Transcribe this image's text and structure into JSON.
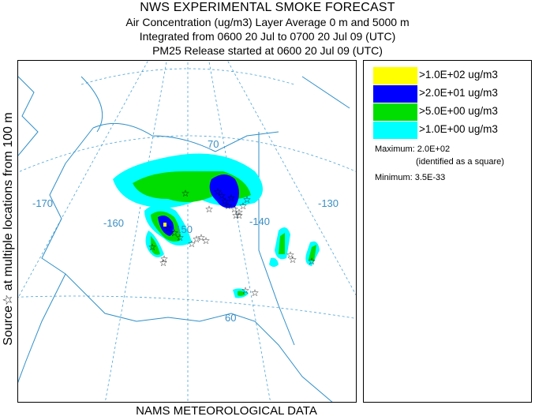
{
  "header": {
    "title": "NWS EXPERIMENTAL SMOKE FORECAST",
    "line2": "Air Concentration (ug/m3) Layer Average    0 m and  5000 m",
    "line3": "Integrated from 0600 20 Jul to 0700 20 Jul 09 (UTC)",
    "line4": "PM25 Release started at 0600 20 Jul 09 (UTC)"
  },
  "side_label": "Source☆  at multiple locations  from  100 m",
  "footer": "NAMS METEOROLOGICAL DATA",
  "legend": {
    "items": [
      {
        "label": ">1.0E+02 ug/m3",
        "color": "#ffff00"
      },
      {
        "label": ">2.0E+01 ug/m3",
        "color": "#0000ff"
      },
      {
        "label": ">5.0E+00 ug/m3",
        "color": "#00dd00"
      },
      {
        "label": ">1.0E+00 ug/m3",
        "color": "#00ffff"
      }
    ],
    "maximum_label": "Maximum:",
    "maximum_value": "2.0E+02",
    "maximum_note": "(identified as a square)",
    "minimum_label": "Minimum:",
    "minimum_value": "3.5E-33"
  },
  "map": {
    "grid_labels": {
      "lat70": "70",
      "lat60": "60",
      "lon170": "-170",
      "lon160": "-160",
      "lon150": "-150",
      "lon140": "-140",
      "lon130": "-130"
    },
    "colors": {
      "grid": "#4aa3d6",
      "coast": "#2f8fc8",
      "source_marker": "#000000"
    },
    "icons": [
      "source-star-icon"
    ]
  }
}
